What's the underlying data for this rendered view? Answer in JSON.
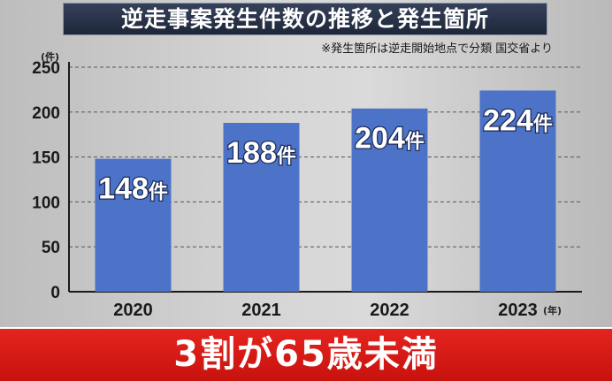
{
  "title": "逆走事案発生件数の推移と発生箇所",
  "note": "※発生箇所は逆走開始地点で分類 国交省より",
  "y_unit": "(件)",
  "x_unit": "(年)",
  "value_suffix": "件",
  "banner": "3割が65歳未満",
  "colors": {
    "bar": "#4d73c9",
    "title_bg": "#2a3347",
    "banner": "#d91a16"
  },
  "chart_data": {
    "type": "bar",
    "categories": [
      "2020",
      "2021",
      "2022",
      "2023"
    ],
    "values": [
      148,
      188,
      204,
      224
    ],
    "value_labels": [
      "148",
      "188",
      "204",
      "224"
    ],
    "yticks": [
      "0",
      "50",
      "100",
      "150",
      "200",
      "250"
    ],
    "ylim": [
      0,
      250
    ],
    "grid": true
  }
}
